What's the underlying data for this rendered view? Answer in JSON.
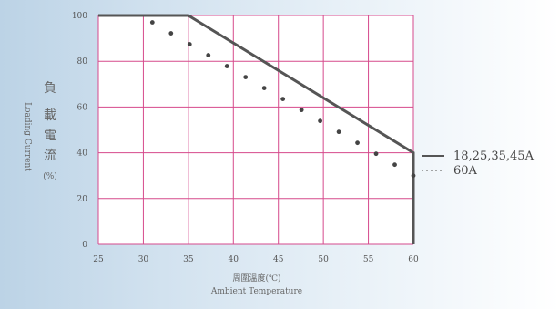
{
  "chart_data": {
    "type": "line",
    "x_ticks": [
      25,
      30,
      35,
      40,
      45,
      50,
      55,
      60
    ],
    "y_ticks": [
      0,
      20,
      40,
      60,
      80,
      100
    ],
    "xlim": [
      25,
      60
    ],
    "ylim": [
      0,
      100
    ],
    "grid": true,
    "xlabel_cn": "周圍溫度(℃)",
    "xlabel_en": "Ambient Temperature",
    "ylabel_cn": [
      "負",
      "載",
      "電",
      "流",
      "(%)"
    ],
    "ylabel_en": "Loading Current",
    "legend_placement": "right",
    "series": [
      {
        "name": "18,25,35,45A",
        "style": "solid",
        "color": "#555555",
        "points": [
          [
            25,
            100
          ],
          [
            35,
            100
          ],
          [
            60,
            40
          ],
          [
            60,
            0
          ]
        ]
      },
      {
        "name": "60A",
        "style": "dotted",
        "color": "#444444",
        "points": [
          [
            31,
            97
          ],
          [
            60,
            30
          ]
        ]
      }
    ],
    "grid_color": "#d64a8c",
    "plot_bg": "#ffffff"
  }
}
